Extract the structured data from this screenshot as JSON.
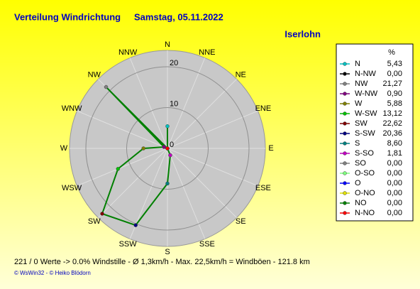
{
  "chart_data": {
    "type": "polar",
    "title": "Verteilung Windrichtung",
    "subtitle": "Samstag, 05.11.2022",
    "location": "Iserlohn",
    "directions": [
      "N",
      "NNE",
      "NE",
      "ENE",
      "E",
      "ESE",
      "SE",
      "SSE",
      "S",
      "SSW",
      "SW",
      "WSW",
      "W",
      "WNW",
      "NW",
      "NNW"
    ],
    "legend_title": "%",
    "categories": [
      "N",
      "N-NW",
      "NW",
      "W-NW",
      "W",
      "W-SW",
      "SW",
      "S-SW",
      "S",
      "S-SO",
      "SO",
      "O-SO",
      "O",
      "O-NO",
      "NO",
      "N-NO"
    ],
    "values": [
      5.43,
      0,
      21.27,
      0.9,
      5.88,
      13.12,
      22.62,
      20.36,
      8.6,
      1.81,
      0,
      0,
      0,
      0,
      0,
      0
    ],
    "value_labels": [
      "5,43",
      "0,00",
      "21,27",
      "0,90",
      "5,88",
      "13,12",
      "22,62",
      "20,36",
      "8,60",
      "1,81",
      "0,00",
      "0,00",
      "0,00",
      "0,00",
      "0,00",
      "0,00"
    ],
    "colors": [
      "#00c0c0",
      "#000000",
      "#808080",
      "#800080",
      "#808000",
      "#00c000",
      "#800000",
      "#000080",
      "#008080",
      "#c000c0",
      "#808080",
      "#80ff80",
      "#0000ff",
      "#e0e000",
      "#008000",
      "#ff0000"
    ],
    "line_color": "#008000",
    "rlim": [
      0,
      24
    ],
    "rticks": [
      0,
      10,
      20
    ],
    "footer": "221 / 0 Werte  -> 0.0% Windstille   -   Ø 1,3km/h   -  Max. 22,5km/h = Windböen   -   121.8 km",
    "credit": "© WsWin32  -  © Heiko Blödorn"
  }
}
